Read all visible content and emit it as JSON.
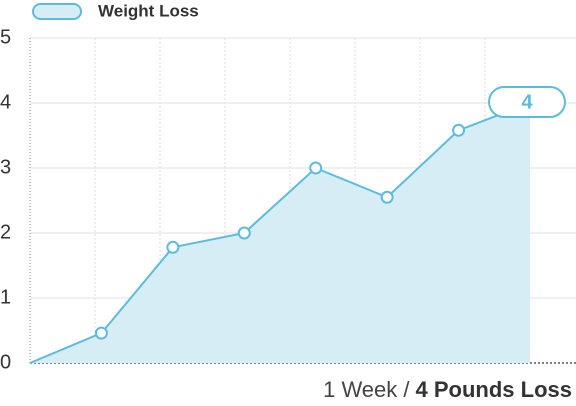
{
  "chart_data": {
    "type": "area",
    "series": [
      {
        "name": "Weight Loss",
        "color": "#5bbcdc",
        "fill": "#d6edf5",
        "values": [
          0,
          0.46,
          1.78,
          2.0,
          3.0,
          2.55,
          3.58,
          4
        ]
      }
    ],
    "categories": [
      null,
      null,
      null,
      null,
      null,
      null,
      null,
      null
    ],
    "ylim": [
      0,
      5
    ],
    "yticks": [
      0,
      1,
      2,
      3,
      4,
      5
    ],
    "grid": true,
    "xlabel": "1 Week /",
    "xlabel_bold": "4 Pounds Loss"
  }
}
